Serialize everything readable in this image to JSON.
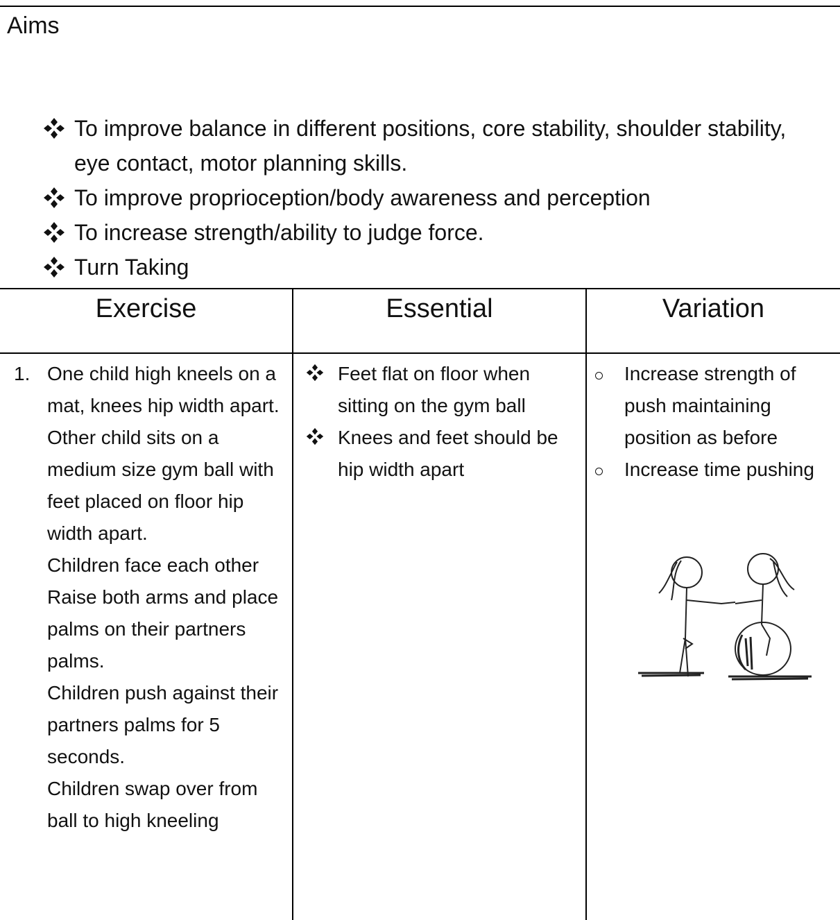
{
  "header": {
    "title": "Aims"
  },
  "aims": [
    "To improve balance in different positions, core stability, shoulder stability, eye contact, motor planning skills.",
    "To improve proprioception/body awareness and perception",
    "To increase strength/ability to judge force.",
    "Turn Taking"
  ],
  "table": {
    "headers": [
      "Exercise",
      "Essential",
      "Variation"
    ],
    "rows": [
      {
        "number": "1.",
        "exercise": [
          "One child high kneels on a mat, knees hip width apart.",
          "Other child sits on a medium size gym ball with feet placed on floor hip width apart.",
          "Children face each other",
          "Raise both arms and place palms on their partners palms.",
          "Children push against their partners palms for 5 seconds.",
          "Children swap over from ball to high kneeling"
        ],
        "essential": [
          "Feet flat on floor when sitting on the gym ball",
          "Knees and feet should be hip width apart"
        ],
        "variation": [
          "Increase strength of push maintaining position as before",
          "Increase time pushing"
        ]
      }
    ]
  }
}
